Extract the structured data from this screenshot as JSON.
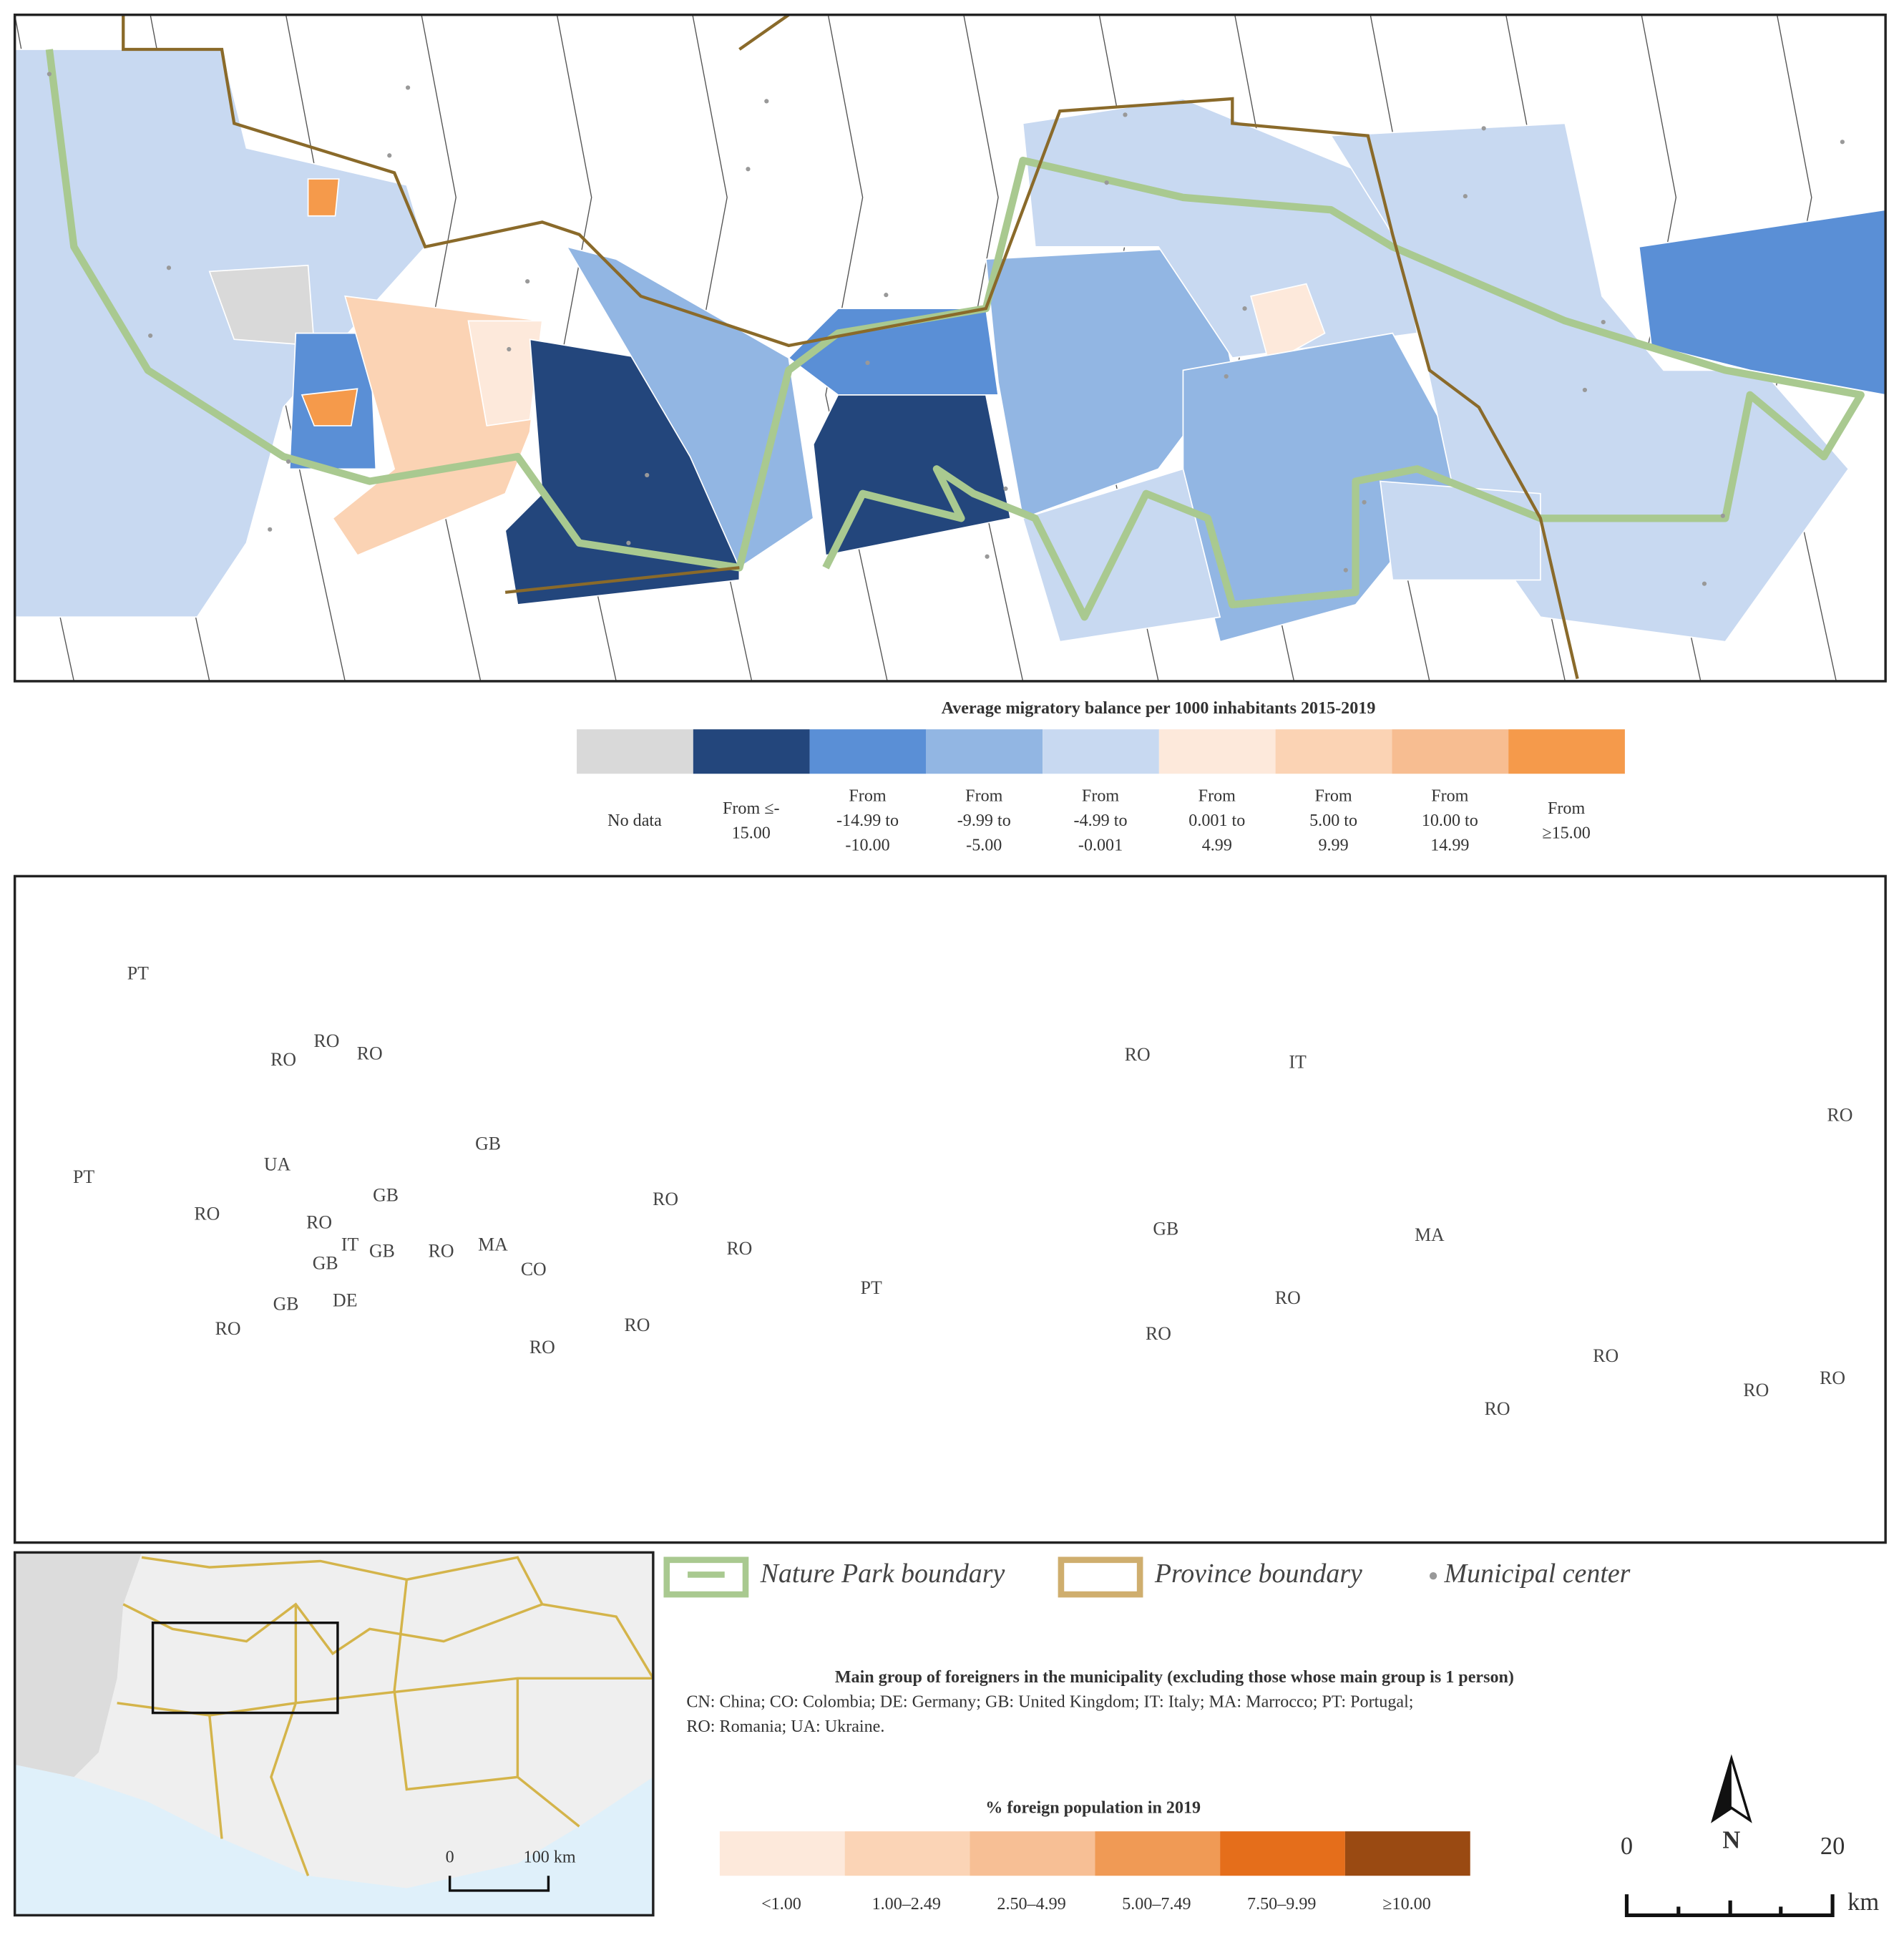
{
  "top_map": {
    "legend_title": "Average migratory balance per 1000 inhabitants 2015-2019",
    "legend": [
      {
        "label": [
          "No data"
        ],
        "color": "#d9d9d9"
      },
      {
        "label": [
          "From ≤-",
          "15.00"
        ],
        "color": "#23467c"
      },
      {
        "label": [
          "From",
          "-14.99 to",
          "-10.00"
        ],
        "color": "#5a8fd6"
      },
      {
        "label": [
          "From",
          "-9.99 to",
          "-5.00"
        ],
        "color": "#92b6e3"
      },
      {
        "label": [
          "From",
          "-4.99 to",
          "-0.001"
        ],
        "color": "#c8d9f1"
      },
      {
        "label": [
          "From",
          "0.001 to",
          "4.99"
        ],
        "color": "#fde9db"
      },
      {
        "label": [
          "From",
          "5.00 to",
          "9.99"
        ],
        "color": "#fbd3b4"
      },
      {
        "label": [
          "From",
          "10.00 to",
          "14.99"
        ],
        "color": "#f7bd91"
      },
      {
        "label": [
          "From",
          "≥15.00"
        ],
        "color": "#f59a4b"
      }
    ]
  },
  "bottom_map": {
    "labels": [
      "PT",
      "RO",
      "RO",
      "RO",
      "UA",
      "PT",
      "GB",
      "RO",
      "GB",
      "RO",
      "RO",
      "IT",
      "GB",
      "RO",
      "MA",
      "CO",
      "GB",
      "DE",
      "GB",
      "RO",
      "RO",
      "RO",
      "RO",
      "PT",
      "RO",
      "IT",
      "GB",
      "MA",
      "RO",
      "RO",
      "RO",
      "RO",
      "RO",
      "RO",
      "RO"
    ],
    "note_title": "Main group of foreigners in the municipality (excluding those whose main group is 1 person)",
    "note_lines": [
      "CN: China; CO: Colombia; DE: Germany;  GB: United Kingdom; IT: Italy;  MA: Marrocco; PT: Portugal;",
      "RO: Romania; UA: Ukraine."
    ],
    "legend_title": "% foreign population in 2019",
    "legend": [
      {
        "label": "<1.00",
        "color": "#fde9db"
      },
      {
        "label": "1.00–2.49",
        "color": "#fbd4b6"
      },
      {
        "label": "2.50–4.99",
        "color": "#f7bf95"
      },
      {
        "label": "5.00–7.49",
        "color": "#f09a55"
      },
      {
        "label": "7.50–9.99",
        "color": "#e56e1b"
      },
      {
        "label": "≥10.00",
        "color": "#9a4a12"
      }
    ]
  },
  "key": [
    "Nature Park boundary",
    "Province boundary",
    "Municipal center"
  ],
  "inset": {
    "scale_labels": [
      "0",
      "100 km"
    ]
  },
  "scale_bar": {
    "labels": [
      "0",
      "20",
      "km"
    ],
    "north": "N"
  }
}
